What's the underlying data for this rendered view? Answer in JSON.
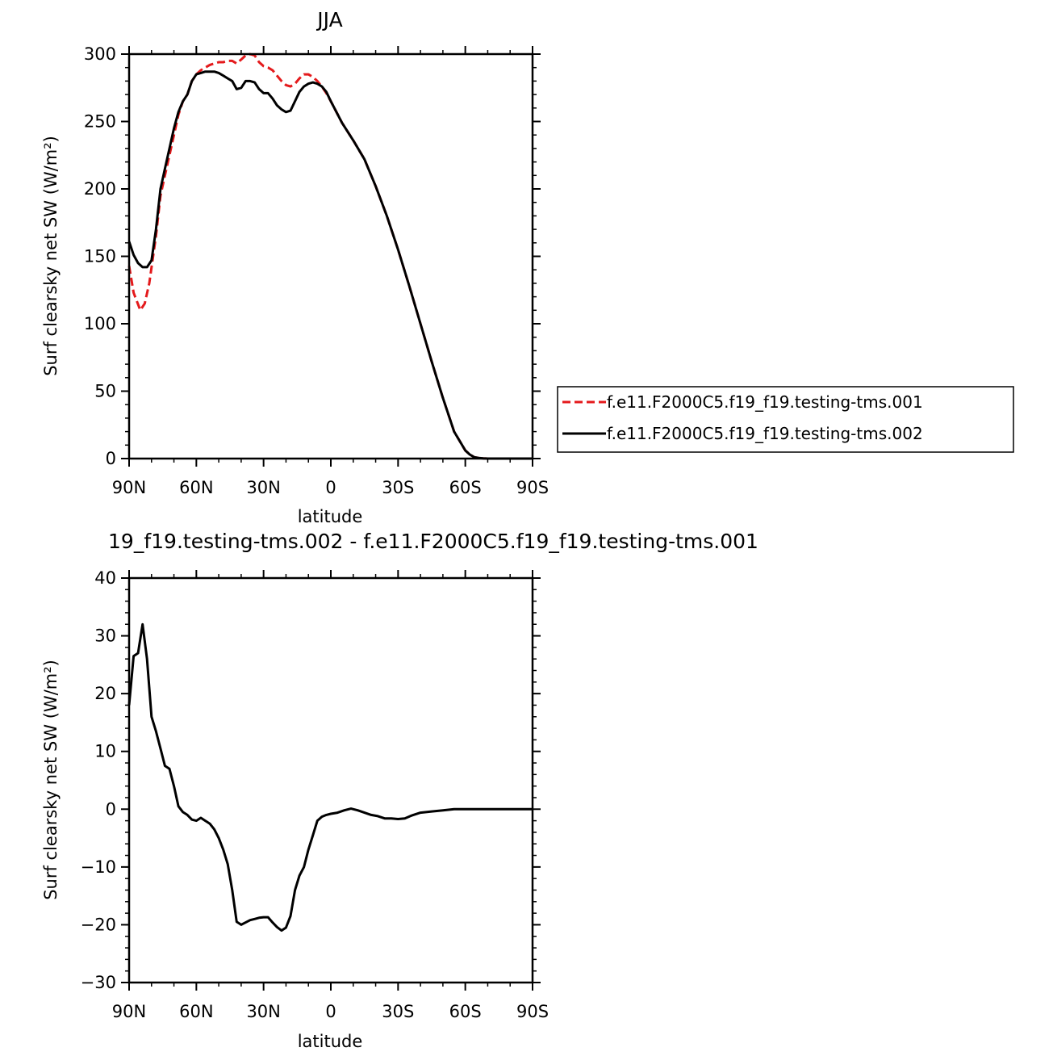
{
  "chart_data": [
    {
      "type": "line",
      "title": "JJA",
      "xlabel": "latitude",
      "ylabel": "Surf clearsky net SW (W/m²)",
      "xlim": [
        90,
        -90
      ],
      "ylim": [
        0,
        300
      ],
      "x_ticks": [
        90,
        60,
        30,
        0,
        -30,
        -60,
        -90
      ],
      "x_tick_labels": [
        "90N",
        "60N",
        "30N",
        "0",
        "30S",
        "60S",
        "90S"
      ],
      "y_ticks": [
        0,
        50,
        100,
        150,
        200,
        250,
        300
      ],
      "y_tick_labels": [
        "0",
        "50",
        "100",
        "150",
        "200",
        "250",
        "300"
      ],
      "legend": "right",
      "series": [
        {
          "name": "f.e11.F2000C5.f19_f19.testing-tms.001",
          "color": "#e41a1c",
          "dash": "dashed",
          "x": [
            90,
            88,
            85,
            83,
            81,
            78,
            76,
            74,
            72,
            70,
            68,
            66,
            64,
            62,
            60,
            58,
            56,
            54,
            52,
            50,
            48,
            46,
            44,
            42,
            40,
            38,
            36,
            34,
            32,
            30,
            28,
            26,
            24,
            22,
            20,
            18,
            16,
            14,
            12,
            10,
            8,
            6,
            4,
            2,
            0,
            -5,
            -10,
            -15,
            -20,
            -25,
            -30,
            -35,
            -40,
            -45,
            -50,
            -55,
            -60,
            -62,
            -64,
            -66,
            -68,
            -70,
            -75,
            -80,
            -85,
            -90
          ],
          "values": [
            143,
            123,
            110,
            115,
            130,
            165,
            195,
            210,
            225,
            240,
            255,
            265,
            270,
            280,
            285,
            288,
            290,
            292,
            293,
            294,
            294,
            295,
            295,
            293,
            296,
            299,
            300,
            299,
            294,
            291,
            290,
            288,
            284,
            280,
            277,
            276,
            278,
            282,
            285,
            285,
            283,
            280,
            276,
            271,
            265,
            249,
            236,
            222,
            202,
            180,
            155,
            128,
            100,
            72,
            45,
            20,
            6,
            3,
            1,
            0.5,
            0.2,
            0,
            0,
            0,
            0,
            0
          ]
        },
        {
          "name": "f.e11.F2000C5.f19_f19.testing-tms.002",
          "color": "#000000",
          "dash": "solid",
          "x": [
            90,
            88,
            86,
            84,
            82,
            80,
            78,
            76,
            74,
            72,
            70,
            68,
            66,
            64,
            62,
            60,
            58,
            56,
            54,
            52,
            50,
            48,
            46,
            44,
            42,
            40,
            38,
            36,
            34,
            32,
            30,
            28,
            26,
            24,
            22,
            20,
            18,
            16,
            14,
            12,
            10,
            8,
            6,
            4,
            2,
            0,
            -5,
            -10,
            -15,
            -20,
            -25,
            -30,
            -35,
            -40,
            -45,
            -50,
            -55,
            -60,
            -62,
            -64,
            -66,
            -68,
            -70,
            -75,
            -80,
            -85,
            -90
          ],
          "values": [
            161,
            151,
            145,
            142,
            142,
            147,
            170,
            200,
            215,
            230,
            245,
            257,
            265,
            270,
            280,
            285,
            286,
            287,
            287,
            287,
            286,
            284,
            282,
            280,
            274,
            275,
            280,
            280,
            279,
            274,
            271,
            271,
            267,
            262,
            259,
            257,
            258,
            265,
            272,
            276,
            278,
            279,
            278,
            276,
            272,
            265,
            249,
            236,
            222,
            202,
            180,
            155,
            128,
            100,
            72,
            45,
            20,
            6,
            3,
            1,
            0.5,
            0.2,
            0,
            0,
            0,
            0,
            0
          ]
        }
      ]
    },
    {
      "type": "line",
      "title": "19_f19.testing-tms.002 - f.e11.F2000C5.f19_f19.testing-tms.001",
      "xlabel": "latitude",
      "ylabel": "Surf clearsky net SW (W/m²)",
      "xlim": [
        90,
        -90
      ],
      "ylim": [
        -30,
        40
      ],
      "x_ticks": [
        90,
        60,
        30,
        0,
        -30,
        -60,
        -90
      ],
      "x_tick_labels": [
        "90N",
        "60N",
        "30N",
        "0",
        "30S",
        "60S",
        "90S"
      ],
      "y_ticks": [
        -30,
        -20,
        -10,
        0,
        10,
        20,
        30,
        40
      ],
      "y_tick_labels": [
        "−30",
        "−20",
        "−10",
        "0",
        "10",
        "20",
        "30",
        "40"
      ],
      "series": [
        {
          "color": "#000000",
          "dash": "solid",
          "x": [
            90,
            88,
            86,
            84,
            82,
            80,
            78,
            76,
            74,
            72,
            70,
            68,
            66,
            64,
            62,
            60,
            58,
            56,
            54,
            52,
            50,
            48,
            46,
            44,
            42,
            40,
            38,
            36,
            34,
            32,
            30,
            28,
            26,
            24,
            22,
            20,
            18,
            16,
            14,
            12,
            10,
            8,
            6,
            4,
            2,
            0,
            -3,
            -6,
            -9,
            -12,
            -15,
            -18,
            -21,
            -24,
            -27,
            -30,
            -33,
            -36,
            -40,
            -45,
            -50,
            -55,
            -60,
            -70,
            -80,
            -90
          ],
          "values": [
            18,
            26.5,
            27,
            32,
            26,
            16,
            13.5,
            10.5,
            7.5,
            7,
            4,
            0.5,
            -0.5,
            -1,
            -1.8,
            -2,
            -1.5,
            -2,
            -2.5,
            -3.5,
            -5,
            -7,
            -9.5,
            -14,
            -19.5,
            -20,
            -19.6,
            -19.2,
            -19,
            -18.8,
            -18.7,
            -18.7,
            -19.6,
            -20.4,
            -21,
            -20.5,
            -18.5,
            -14,
            -11.5,
            -10,
            -7,
            -4.5,
            -2,
            -1.3,
            -1,
            -0.8,
            -0.6,
            -0.2,
            0.1,
            -0.2,
            -0.6,
            -1,
            -1.2,
            -1.6,
            -1.6,
            -1.7,
            -1.6,
            -1.1,
            -0.6,
            -0.4,
            -0.2,
            0,
            0,
            0,
            0,
            0
          ]
        }
      ]
    }
  ]
}
